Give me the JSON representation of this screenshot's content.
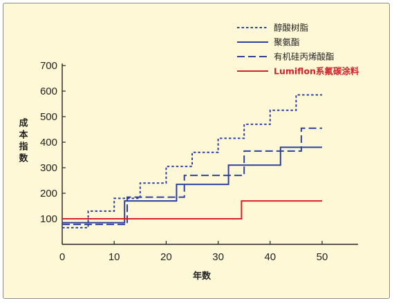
{
  "chart_data": {
    "type": "line",
    "step": true,
    "xlabel": "年数",
    "ylabel": "成本指数",
    "xlim": [
      0,
      52
    ],
    "ylim": [
      0,
      720
    ],
    "x_ticks": [
      0,
      10,
      20,
      30,
      40,
      50
    ],
    "y_ticks": [
      100,
      200,
      300,
      400,
      500,
      600,
      700
    ],
    "grid": false,
    "legend_position": "top-right",
    "series": [
      {
        "name": "醇酸树脂",
        "color": "#2b3fa0",
        "style": "dotted",
        "points": [
          [
            0,
            65
          ],
          [
            5,
            65
          ],
          [
            5,
            130
          ],
          [
            10,
            130
          ],
          [
            10,
            180
          ],
          [
            15,
            180
          ],
          [
            15,
            240
          ],
          [
            20,
            240
          ],
          [
            20,
            305
          ],
          [
            25,
            305
          ],
          [
            25,
            360
          ],
          [
            30,
            360
          ],
          [
            30,
            415
          ],
          [
            35,
            415
          ],
          [
            35,
            470
          ],
          [
            40,
            470
          ],
          [
            40,
            525
          ],
          [
            45,
            525
          ],
          [
            45,
            585
          ],
          [
            50,
            585
          ]
        ]
      },
      {
        "name": "聚氨酯",
        "color": "#2b3fa0",
        "style": "solid",
        "points": [
          [
            0,
            85
          ],
          [
            12,
            85
          ],
          [
            12,
            170
          ],
          [
            22,
            170
          ],
          [
            22,
            235
          ],
          [
            32,
            235
          ],
          [
            32,
            310
          ],
          [
            42,
            310
          ],
          [
            42,
            380
          ],
          [
            50,
            380
          ]
        ]
      },
      {
        "name": "有机硅丙烯酸酯",
        "color": "#2b3fa0",
        "style": "dashed",
        "points": [
          [
            0,
            78
          ],
          [
            12.5,
            78
          ],
          [
            12.5,
            185
          ],
          [
            23.5,
            185
          ],
          [
            23.5,
            270
          ],
          [
            35,
            270
          ],
          [
            35,
            365
          ],
          [
            46,
            365
          ],
          [
            46,
            455
          ],
          [
            50,
            455
          ]
        ]
      },
      {
        "name": "Lumiflon系氟碳涂料",
        "color": "#d4202a",
        "style": "solid",
        "points": [
          [
            0,
            100
          ],
          [
            34.5,
            100
          ],
          [
            34.5,
            170
          ],
          [
            50,
            170
          ]
        ]
      }
    ]
  }
}
